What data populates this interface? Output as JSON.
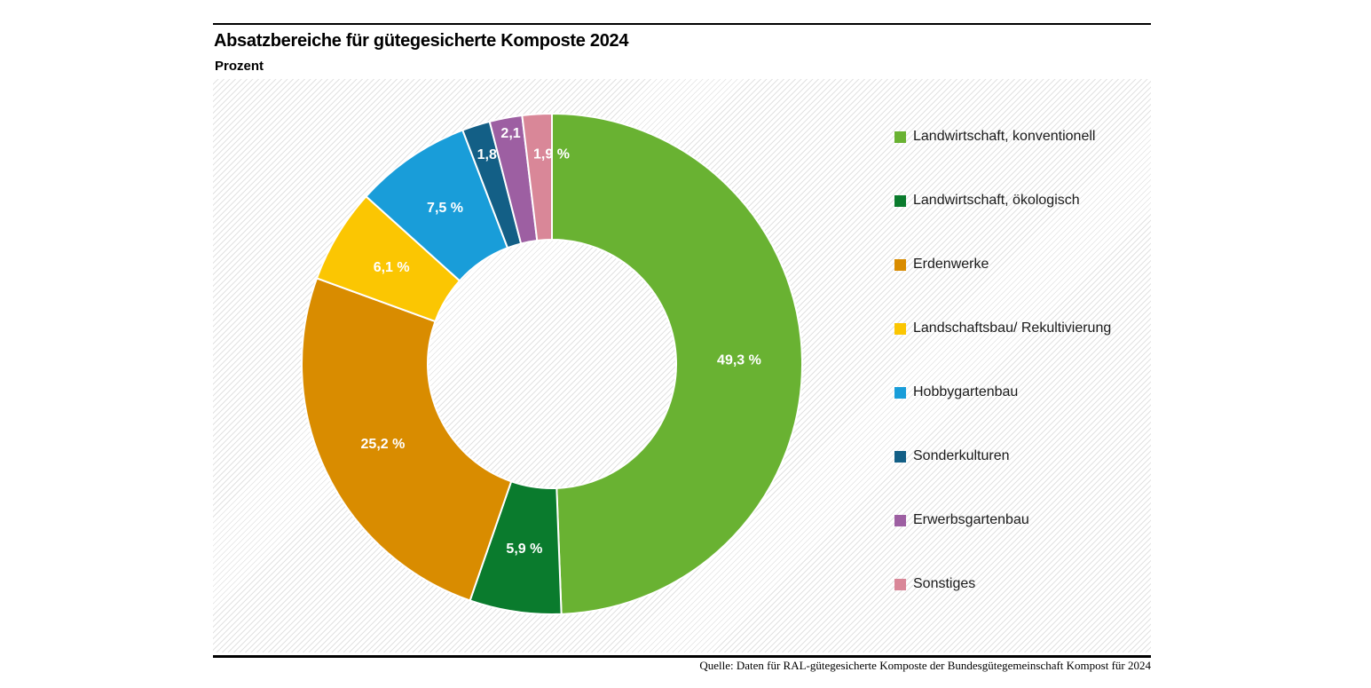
{
  "header": {
    "title": "Absatzbereiche für gütegesicherte Komposte 2024",
    "subtitle": "Prozent"
  },
  "footer": {
    "source": "Quelle: Daten für RAL-gütegesicherte Komposte der Bundesgütegemeinschaft Kompost für 2024"
  },
  "chart_data": {
    "type": "pie",
    "subtype": "donut",
    "title": "Absatzbereiche für gütegesicherte Komposte 2024",
    "unit_label": "Prozent",
    "legend_position": "right",
    "start_angle_deg": 0,
    "direction": "clockwise",
    "background_pattern": "diagonal-hatch",
    "hatch_color": "#e2e2e2",
    "segments": [
      {
        "label": "Landwirtschaft, konventionell",
        "value": 49.3,
        "display": "49,3 %",
        "color": "#69b232",
        "label_r": 211,
        "label_da": 0
      },
      {
        "label": "Landwirtschaft, ökologisch",
        "value": 5.9,
        "display": "5,9 %",
        "color": "#0a7b2d",
        "label_r": 211,
        "label_da": 0
      },
      {
        "label": "Erdenwerke",
        "value": 25.2,
        "display": "25,2 %",
        "color": "#d98c00",
        "label_r": 211,
        "label_da": 0
      },
      {
        "label": "Landschaftsbau/ Rekultivierung",
        "value": 6.1,
        "display": "6,1 %",
        "color": "#fbc602",
        "label_r": 211,
        "label_da": 0
      },
      {
        "label": "Hobbygartenbau",
        "value": 7.5,
        "display": "7,5 %",
        "color": "#199dd9",
        "label_r": 213,
        "label_da": 0
      },
      {
        "label": "Sonderkulturen",
        "value": 1.8,
        "display": "1,8 %",
        "color": "#135f86",
        "label_r": 244,
        "label_da": 2.5
      },
      {
        "label": "Erwerbsgartenbau",
        "value": 2.1,
        "display": "2,1 %",
        "color": "#9d5fa2",
        "label_r": 262,
        "label_da": 2.5
      },
      {
        "label": "Sonstiges",
        "value": 1.9,
        "display": "1,9 %",
        "color": "#d98798",
        "label_r": 236,
        "label_da": 3.3
      }
    ]
  }
}
